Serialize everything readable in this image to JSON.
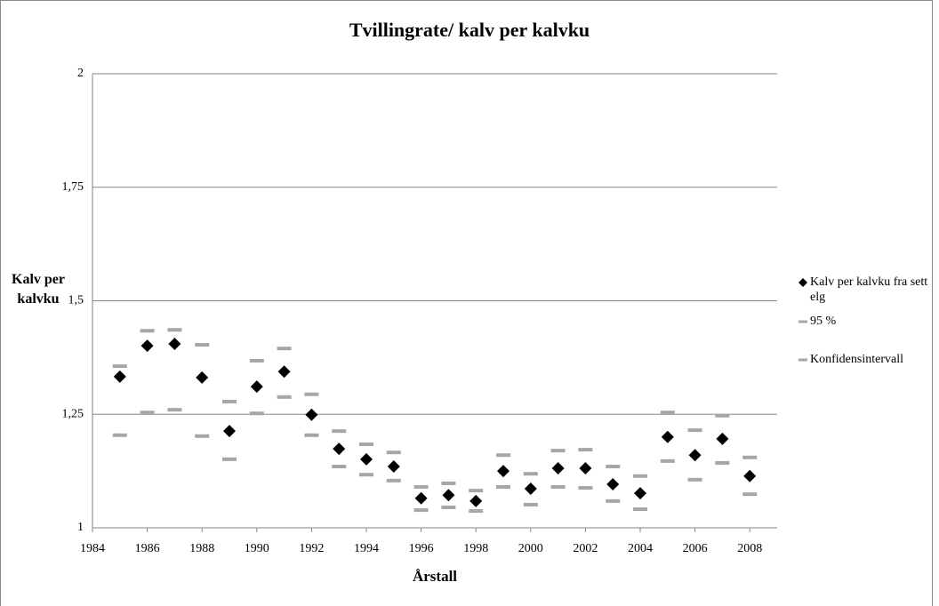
{
  "chart_data": {
    "type": "scatter",
    "title": "Tvillingrate/ kalv per kalvku",
    "x_label": "Årstall",
    "y_label": "Kalv per kalvku",
    "x": [
      1985,
      1986,
      1987,
      1988,
      1989,
      1990,
      1991,
      1992,
      1993,
      1994,
      1995,
      1996,
      1997,
      1998,
      1999,
      2000,
      2001,
      2002,
      2003,
      2004,
      2005,
      2006,
      2007,
      2008
    ],
    "series": [
      {
        "name": "Kalv per kalvku fra sett elg",
        "color": "#000000",
        "marker": "diamond",
        "values": [
          1.333,
          1.401,
          1.405,
          1.331,
          1.213,
          1.311,
          1.344,
          1.249,
          1.174,
          1.151,
          1.135,
          1.065,
          1.072,
          1.059,
          1.125,
          1.086,
          1.131,
          1.131,
          1.096,
          1.076,
          1.2,
          1.16,
          1.196,
          1.114
        ]
      },
      {
        "name": "95 %",
        "color": "#a6a6a6",
        "marker": "dash",
        "values": [
          1.356,
          1.434,
          1.436,
          1.403,
          1.278,
          1.368,
          1.395,
          1.294,
          1.213,
          1.184,
          1.166,
          1.09,
          1.098,
          1.082,
          1.16,
          1.119,
          1.17,
          1.172,
          1.135,
          1.114,
          1.254,
          1.215,
          1.247,
          1.155
        ]
      },
      {
        "name": "Konfidensintervall",
        "color": "#a6a6a6",
        "marker": "dash",
        "values": [
          1.204,
          1.254,
          1.26,
          1.202,
          1.151,
          1.252,
          1.288,
          1.204,
          1.135,
          1.117,
          1.104,
          1.039,
          1.045,
          1.037,
          1.09,
          1.051,
          1.09,
          1.088,
          1.059,
          1.041,
          1.147,
          1.106,
          1.143,
          1.074
        ]
      }
    ],
    "xlim": [
      1984,
      2009
    ],
    "xticks": [
      1984,
      1986,
      1988,
      1990,
      1992,
      1994,
      1996,
      1998,
      2000,
      2002,
      2004,
      2006,
      2008
    ],
    "ylim": [
      1,
      2
    ],
    "yticks": [
      1,
      {
        "value": 1.25,
        "label": "1,25"
      },
      {
        "value": 1.5,
        "label": "1,5"
      },
      {
        "value": 1.75,
        "label": "1,75"
      },
      2
    ],
    "grid": true,
    "legend": "right"
  }
}
